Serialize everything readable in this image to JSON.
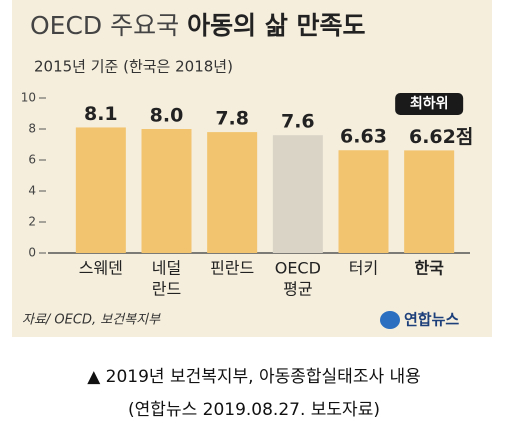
{
  "chart_data": {
    "type": "bar",
    "title": "OECD 주요국",
    "title_emphasis": "아동의 삶 만족도",
    "subtitle": "2015년 기준 (한국은 2018년)",
    "categories": [
      [
        "스웨덴"
      ],
      [
        "네덜",
        "란드"
      ],
      [
        "핀란드"
      ],
      [
        "OECD",
        "평균"
      ],
      [
        "터키"
      ],
      [
        "한국"
      ]
    ],
    "values": [
      8.1,
      8.0,
      7.8,
      7.6,
      6.63,
      6.62
    ],
    "value_labels": [
      "8.1",
      "8.0",
      "7.8",
      "7.6",
      "6.63",
      "6.62점"
    ],
    "colors": [
      "#f2c46f",
      "#f2c46f",
      "#f2c46f",
      "#d9d4c6",
      "#f2c46f",
      "#f2c46f"
    ],
    "ylim": [
      0,
      10
    ],
    "yticks": [
      0,
      2,
      4,
      6,
      8,
      10
    ],
    "grid": false,
    "annotation": "최하위",
    "source": "자료/ OECD, 보건복지부",
    "logo": "연합뉴스"
  },
  "caption": {
    "line1": "▲ 2019년 보건복지부, 아동종합실태조사 내용",
    "line2": "(연합뉴스 2019.08.27. 보도자료)"
  }
}
